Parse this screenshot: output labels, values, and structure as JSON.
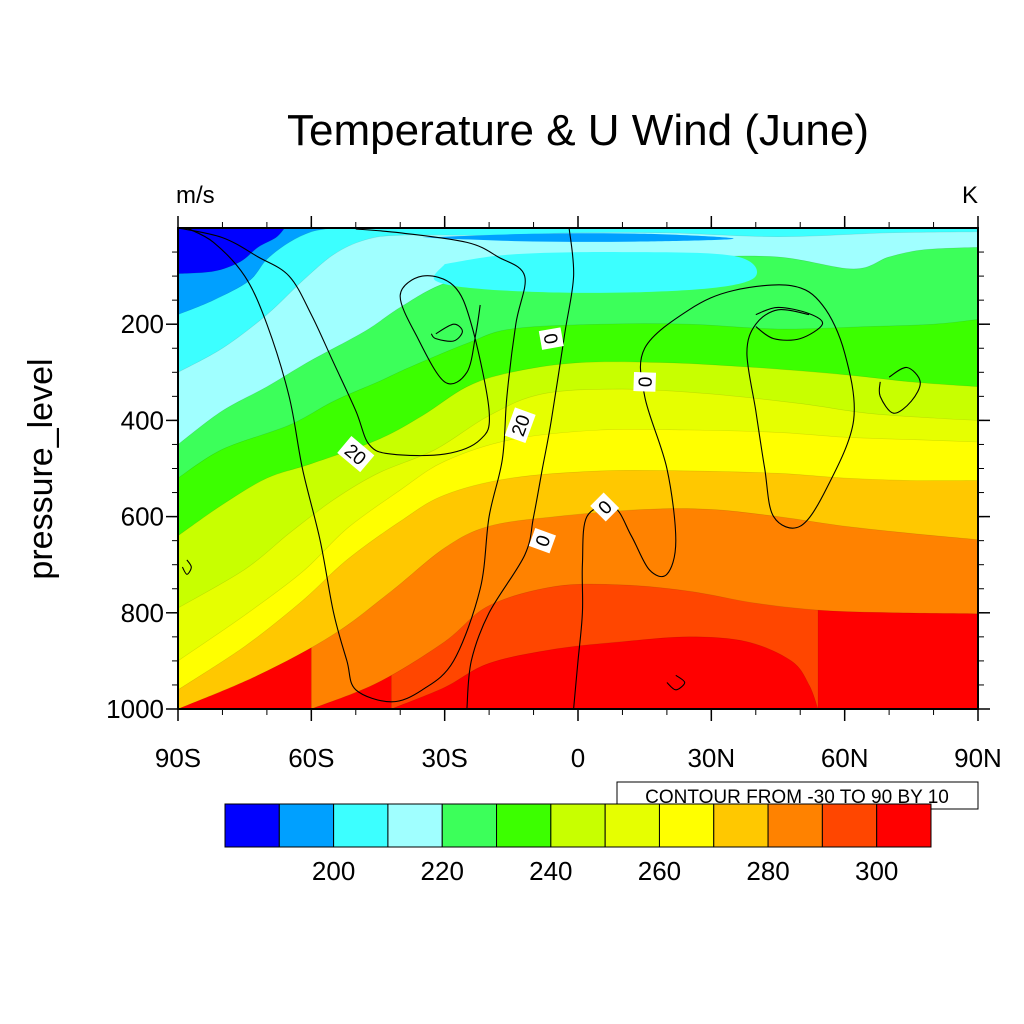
{
  "chart_data": {
    "type": "contour",
    "title": "Temperature & U Wind (June)",
    "left_label": "m/s",
    "right_label": "K",
    "ylabel": "pressure_level",
    "x_ticks": [
      "90S",
      "60S",
      "30S",
      "0",
      "30N",
      "60N",
      "90N"
    ],
    "x_tick_values": [
      -90,
      -60,
      -30,
      0,
      30,
      60,
      90
    ],
    "y_ticks": [
      "200",
      "400",
      "600",
      "800",
      "1000"
    ],
    "y_tick_values": [
      200,
      400,
      600,
      800,
      1000
    ],
    "xlim": [
      -90,
      90
    ],
    "ylim": [
      0,
      1000
    ],
    "y_inverted": true,
    "contour_info": "CONTOUR FROM -30 TO 90 BY 10",
    "colorbar": {
      "levels": [
        "200",
        "220",
        "240",
        "260",
        "280",
        "300"
      ],
      "colors": [
        "#0000ff",
        "#00a0ff",
        "#3cffff",
        "#a0ffff",
        "#3cff5a",
        "#3cff00",
        "#c8ff00",
        "#e6ff00",
        "#ffff00",
        "#ffc800",
        "#ff8200",
        "#ff4600",
        "#ff0000"
      ],
      "label_after_box": [
        1,
        3,
        5,
        7,
        9,
        11
      ]
    },
    "fill_bands": [
      {
        "color": "#ff0000",
        "points": [
          [
            -12,
            1000
          ],
          [
            -8,
            985
          ],
          [
            5,
            975
          ],
          [
            20,
            972
          ],
          [
            35,
            980
          ],
          [
            40,
            1000
          ]
        ]
      },
      {
        "color": "#ff4600",
        "points": [
          [
            -42,
            1000
          ],
          [
            -30,
            955
          ],
          [
            -20,
            905
          ],
          [
            -5,
            875
          ],
          [
            10,
            860
          ],
          [
            25,
            850
          ],
          [
            38,
            860
          ],
          [
            48,
            900
          ],
          [
            52,
            950
          ],
          [
            54,
            1000
          ]
        ]
      },
      {
        "color": "#ff8200",
        "points": [
          [
            -60,
            1000
          ],
          [
            -45,
            945
          ],
          [
            -30,
            860
          ],
          [
            -20,
            785
          ],
          [
            -5,
            745
          ],
          [
            10,
            742
          ],
          [
            25,
            755
          ],
          [
            40,
            780
          ],
          [
            55,
            795
          ],
          [
            72,
            800
          ],
          [
            90,
            802
          ]
        ]
      },
      {
        "color": "#ffc800",
        "points": [
          [
            -90,
            1000
          ],
          [
            -72,
            930
          ],
          [
            -55,
            845
          ],
          [
            -42,
            755
          ],
          [
            -30,
            665
          ],
          [
            -20,
            620
          ],
          [
            -5,
            600
          ],
          [
            15,
            585
          ],
          [
            30,
            585
          ],
          [
            45,
            600
          ],
          [
            60,
            620
          ],
          [
            75,
            635
          ],
          [
            90,
            648
          ]
        ]
      },
      {
        "color": "#ffff00",
        "points": [
          [
            -90,
            960
          ],
          [
            -75,
            870
          ],
          [
            -62,
            775
          ],
          [
            -52,
            690
          ],
          [
            -40,
            610
          ],
          [
            -30,
            555
          ],
          [
            -15,
            520
          ],
          [
            5,
            505
          ],
          [
            25,
            505
          ],
          [
            45,
            510
          ],
          [
            60,
            520
          ],
          [
            75,
            525
          ],
          [
            90,
            525
          ]
        ]
      },
      {
        "color": "#e6ff00",
        "points": [
          [
            -90,
            900
          ],
          [
            -75,
            805
          ],
          [
            -62,
            715
          ],
          [
            -52,
            625
          ],
          [
            -40,
            545
          ],
          [
            -30,
            485
          ],
          [
            -15,
            440
          ],
          [
            5,
            420
          ],
          [
            25,
            420
          ],
          [
            45,
            425
          ],
          [
            60,
            435
          ],
          [
            75,
            440
          ],
          [
            90,
            445
          ]
        ]
      },
      {
        "color": "#c8ff00",
        "points": [
          [
            -90,
            790
          ],
          [
            -75,
            710
          ],
          [
            -65,
            635
          ],
          [
            -55,
            565
          ],
          [
            -45,
            510
          ],
          [
            -32,
            460
          ],
          [
            -20,
            390
          ],
          [
            -8,
            345
          ],
          [
            10,
            335
          ],
          [
            30,
            345
          ],
          [
            50,
            365
          ],
          [
            65,
            385
          ],
          [
            80,
            395
          ],
          [
            90,
            400
          ]
        ]
      },
      {
        "color": "#3cff00",
        "points": [
          [
            -90,
            640
          ],
          [
            -80,
            575
          ],
          [
            -70,
            520
          ],
          [
            -60,
            490
          ],
          [
            -45,
            440
          ],
          [
            -35,
            390
          ],
          [
            -25,
            330
          ],
          [
            -15,
            300
          ],
          [
            0,
            280
          ],
          [
            20,
            280
          ],
          [
            40,
            290
          ],
          [
            60,
            305
          ],
          [
            75,
            320
          ],
          [
            90,
            330
          ]
        ]
      },
      {
        "color": "#3cff5a",
        "points": [
          [
            -90,
            520
          ],
          [
            -80,
            460
          ],
          [
            -65,
            410
          ],
          [
            -55,
            360
          ],
          [
            -45,
            320
          ],
          [
            -38,
            290
          ],
          [
            -25,
            240
          ],
          [
            -15,
            210
          ],
          [
            5,
            200
          ],
          [
            25,
            200
          ],
          [
            45,
            210
          ],
          [
            65,
            205
          ],
          [
            80,
            200
          ],
          [
            90,
            190
          ]
        ]
      },
      {
        "color": "#a0ffff",
        "points": [
          [
            -90,
            450
          ],
          [
            -80,
            380
          ],
          [
            -70,
            330
          ],
          [
            -60,
            275
          ],
          [
            -48,
            215
          ],
          [
            -40,
            165
          ],
          [
            -30,
            115
          ],
          [
            -15,
            80
          ],
          [
            5,
            65
          ],
          [
            25,
            60
          ],
          [
            45,
            60
          ],
          [
            62,
            85
          ],
          [
            70,
            60
          ],
          [
            78,
            45
          ],
          [
            90,
            40
          ]
        ]
      },
      {
        "color": "#3cffff",
        "points": [
          [
            -90,
            300
          ],
          [
            -80,
            250
          ],
          [
            -70,
            180
          ],
          [
            -62,
            110
          ],
          [
            -55,
            55
          ],
          [
            -48,
            25
          ],
          [
            -40,
            15
          ],
          [
            -20,
            15
          ],
          [
            0,
            10
          ],
          [
            20,
            10
          ],
          [
            45,
            18
          ],
          [
            70,
            10
          ],
          [
            90,
            8
          ]
        ]
      },
      {
        "color": "#00a0ff",
        "points": [
          [
            -90,
            180
          ],
          [
            -82,
            150
          ],
          [
            -74,
            110
          ],
          [
            -70,
            65
          ],
          [
            -65,
            30
          ],
          [
            -60,
            8
          ],
          [
            -55,
            0
          ]
        ]
      },
      {
        "color": "#0000ff",
        "points": [
          [
            -90,
            95
          ],
          [
            -82,
            90
          ],
          [
            -76,
            70
          ],
          [
            -72,
            40
          ],
          [
            -68,
            20
          ],
          [
            -66,
            0
          ]
        ]
      }
    ],
    "fill_islands": [
      {
        "color": "#00a0ff",
        "points": [
          [
            -25,
            90
          ],
          [
            -15,
            72
          ],
          [
            5,
            68
          ],
          [
            25,
            75
          ],
          [
            30,
            95
          ],
          [
            15,
            105
          ],
          [
            -5,
            108
          ],
          [
            -20,
            103
          ]
        ]
      },
      {
        "color": "#00a0ff",
        "points": [
          [
            -35,
            20
          ],
          [
            -10,
            12
          ],
          [
            15,
            12
          ],
          [
            35,
            22
          ],
          [
            15,
            28
          ],
          [
            -10,
            28
          ]
        ]
      },
      {
        "color": "#3cffff",
        "points": [
          [
            -30,
            75
          ],
          [
            -15,
            55
          ],
          [
            10,
            50
          ],
          [
            35,
            58
          ],
          [
            40,
            100
          ],
          [
            30,
            125
          ],
          [
            5,
            135
          ],
          [
            -20,
            128
          ],
          [
            -32,
            110
          ]
        ]
      }
    ],
    "contour_lines": [
      [
        [
          -88,
          0
        ],
        [
          -82,
          30
        ],
        [
          -75,
          100
        ],
        [
          -70,
          200
        ],
        [
          -65,
          350
        ],
        [
          -62,
          500
        ],
        [
          -58,
          650
        ],
        [
          -55,
          800
        ],
        [
          -52,
          900
        ],
        [
          -50,
          960
        ],
        [
          -42,
          985
        ],
        [
          -35,
          960
        ],
        [
          -28,
          900
        ],
        [
          -22,
          750
        ],
        [
          -20,
          600
        ],
        [
          -17,
          480
        ],
        [
          -16,
          350
        ],
        [
          -14,
          200
        ],
        [
          -12,
          100
        ],
        [
          -18,
          60
        ],
        [
          -25,
          30
        ],
        [
          -40,
          10
        ],
        [
          -50,
          2
        ]
      ],
      [
        [
          -90,
          0
        ],
        [
          -80,
          20
        ],
        [
          -72,
          60
        ],
        [
          -65,
          100
        ],
        [
          -60,
          180
        ],
        [
          -55,
          280
        ],
        [
          -50,
          380
        ],
        [
          -47,
          450
        ],
        [
          -42,
          470
        ],
        [
          -30,
          470
        ],
        [
          -22,
          440
        ],
        [
          -20,
          380
        ],
        [
          -24,
          200
        ],
        [
          -28,
          120
        ],
        [
          -35,
          100
        ],
        [
          -40,
          140
        ],
        [
          -36,
          230
        ],
        [
          -30,
          320
        ],
        [
          -25,
          300
        ],
        [
          -23,
          220
        ],
        [
          -22,
          160
        ]
      ],
      [
        [
          -32,
          220
        ],
        [
          -28,
          200
        ],
        [
          -26,
          215
        ],
        [
          -28,
          235
        ],
        [
          -32,
          230
        ],
        [
          -33,
          220
        ]
      ],
      [
        [
          -2,
          0
        ],
        [
          -1,
          100
        ],
        [
          -3,
          220
        ],
        [
          -6,
          400
        ],
        [
          -8,
          500
        ],
        [
          -10,
          600
        ],
        [
          -12,
          680
        ],
        [
          -20,
          800
        ],
        [
          -24,
          900
        ],
        [
          -25,
          1000
        ]
      ],
      [
        [
          -1,
          1000
        ],
        [
          0,
          900
        ],
        [
          1,
          800
        ],
        [
          1,
          700
        ],
        [
          2,
          600
        ],
        [
          8,
          580
        ],
        [
          12,
          640
        ],
        [
          16,
          710
        ],
        [
          20,
          720
        ],
        [
          22,
          650
        ],
        [
          20,
          500
        ],
        [
          15,
          350
        ],
        [
          15,
          250
        ],
        [
          25,
          170
        ],
        [
          35,
          130
        ],
        [
          48,
          120
        ],
        [
          55,
          160
        ],
        [
          60,
          260
        ],
        [
          62,
          400
        ],
        [
          56,
          540
        ],
        [
          50,
          620
        ],
        [
          44,
          600
        ],
        [
          42,
          500
        ],
        [
          40,
          380
        ],
        [
          38,
          260
        ],
        [
          40,
          200
        ],
        [
          45,
          170
        ],
        [
          52,
          180
        ]
      ],
      [
        [
          40,
          180
        ],
        [
          45,
          165
        ],
        [
          52,
          178
        ],
        [
          55,
          200
        ],
        [
          50,
          230
        ],
        [
          44,
          230
        ],
        [
          40,
          205
        ]
      ],
      [
        [
          70,
          310
        ],
        [
          74,
          290
        ],
        [
          77,
          320
        ],
        [
          75,
          360
        ],
        [
          71,
          385
        ],
        [
          68,
          350
        ],
        [
          68,
          320
        ]
      ],
      [
        [
          22,
          930
        ],
        [
          24,
          945
        ],
        [
          22,
          960
        ],
        [
          20,
          945
        ]
      ],
      [
        [
          -88,
          690
        ],
        [
          -87,
          705
        ],
        [
          -88,
          720
        ],
        [
          -89,
          705
        ]
      ]
    ],
    "contour_labels": [
      {
        "x": -50,
        "y": 470,
        "text": "20",
        "angle": 40
      },
      {
        "x": -13,
        "y": 410,
        "text": "20",
        "angle": -70
      },
      {
        "x": -8,
        "y": 650,
        "text": "0",
        "angle": -70
      },
      {
        "x": -6,
        "y": 230,
        "text": "0",
        "angle": 80
      },
      {
        "x": 15,
        "y": 320,
        "text": "0",
        "angle": -88
      },
      {
        "x": 6,
        "y": 580,
        "text": "0",
        "angle": -45
      }
    ]
  }
}
